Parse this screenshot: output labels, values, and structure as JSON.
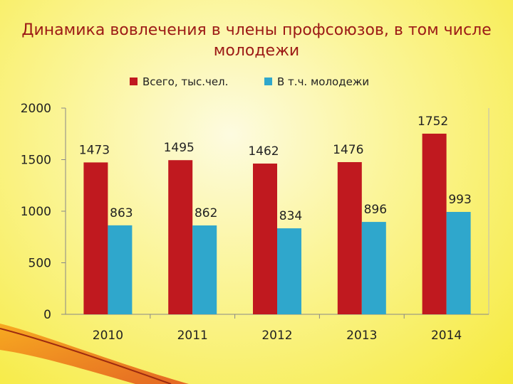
{
  "slide": {
    "title": "Динамика вовлечения в члены профсоюзов, в том числе молодежи"
  },
  "colors": {
    "total": "#c0191f",
    "youth": "#2fa7cc",
    "axis": "#888888",
    "grid": "#bbbbbb"
  },
  "chart_data": {
    "type": "bar",
    "title": "Динамика вовлечения в члены профсоюзов, в том числе молодежи",
    "categories": [
      "2010",
      "2011",
      "2012",
      "2013",
      "2014"
    ],
    "series": [
      {
        "name": "Всего, тыс.чел.",
        "values": [
          1473,
          1495,
          1462,
          1476,
          1752
        ]
      },
      {
        "name": "В т.ч. молодежи",
        "values": [
          863,
          862,
          834,
          896,
          993
        ]
      }
    ],
    "ylim": [
      0,
      2000
    ],
    "yticks": [
      "0",
      "500",
      "1000",
      "1500",
      "2000"
    ],
    "legend_position": "top",
    "grid": false
  }
}
